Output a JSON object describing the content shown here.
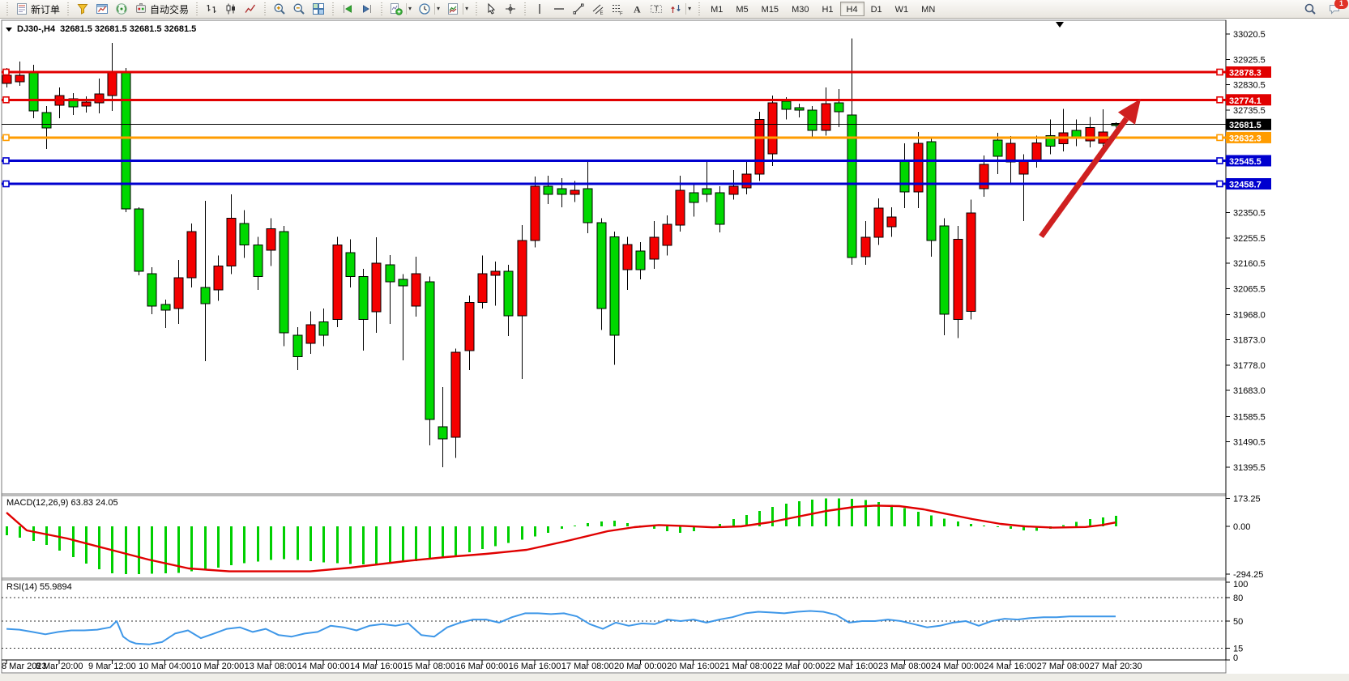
{
  "toolbar": {
    "new_order_label": "新订单",
    "auto_trading_label": "自动交易",
    "icon_groups": [
      [
        "new-order"
      ],
      [
        "funnel",
        "chart-window",
        "signal",
        "auto-trading"
      ],
      [
        "bars-chart",
        "candles-chart",
        "line-chart"
      ],
      [
        "zoom-in",
        "zoom-out",
        "tile-windows"
      ],
      [
        "auto-scroll",
        "chart-shift"
      ],
      [
        "indicators-add",
        "periods",
        "templates"
      ],
      [
        "cursor",
        "crosshair"
      ],
      [
        "vertical-line",
        "horizontal-line",
        "trend-line",
        "equidistant-channel",
        "fibonacci",
        "text",
        "text-label",
        "arr-tools"
      ]
    ],
    "dropdown_icons": [
      "indicators-add",
      "periods",
      "templates",
      "arr-tools"
    ],
    "timeframes": [
      "M1",
      "M5",
      "M15",
      "M30",
      "H1",
      "H4",
      "D1",
      "W1",
      "MN"
    ],
    "active_timeframe": "H4",
    "chat_badge_count": "1"
  },
  "chart": {
    "title": {
      "symbol_period": "DJ30-,H4",
      "ohlc": "32681.5 32681.5 32681.5 32681.5"
    },
    "current_price": "32681.5",
    "price_axis_ticks": [
      {
        "label": "33020.5",
        "price": 33020.5
      },
      {
        "label": "32925.5",
        "price": 32925.5
      },
      {
        "label": "32830.5",
        "price": 32830.5
      },
      {
        "label": "32735.5",
        "price": 32735.5
      },
      {
        "label": "32350.5",
        "price": 32350.5
      },
      {
        "label": "32255.5",
        "price": 32255.5
      },
      {
        "label": "32160.5",
        "price": 32160.5
      },
      {
        "label": "32065.5",
        "price": 32065.5
      },
      {
        "label": "31968.0",
        "price": 31968.0
      },
      {
        "label": "31873.0",
        "price": 31873.0
      },
      {
        "label": "31778.0",
        "price": 31778.0
      },
      {
        "label": "31683.0",
        "price": 31683.0
      },
      {
        "label": "31585.5",
        "price": 31585.5
      },
      {
        "label": "31490.5",
        "price": 31490.5
      },
      {
        "label": "31395.5",
        "price": 31395.5
      }
    ],
    "hlines": [
      {
        "label": "32878.3",
        "price": 32878.3,
        "color": "#e10000",
        "width": 3,
        "markers": true
      },
      {
        "label": "32774.1",
        "price": 32774.1,
        "color": "#e10000",
        "width": 3,
        "markers": true
      },
      {
        "label": "32681.5",
        "price": 32681.5,
        "color": "#000000",
        "width": 1,
        "markers": false
      },
      {
        "label": "32632.3",
        "price": 32632.3,
        "color": "#ff9c00",
        "width": 3,
        "markers": true
      },
      {
        "label": "32545.5",
        "price": 32545.5,
        "color": "#0000cf",
        "width": 3,
        "markers": true
      },
      {
        "label": "32458.7",
        "price": 32458.7,
        "color": "#0000cf",
        "width": 3,
        "markers": true
      }
    ],
    "time_axis_labels": [
      "8 Mar 2023",
      "8 Mar 20:00",
      "9 Mar 12:00",
      "10 Mar 04:00",
      "10 Mar 20:00",
      "13 Mar 08:00",
      "14 Mar 00:00",
      "14 Mar 16:00",
      "15 Mar 08:00",
      "16 Mar 00:00",
      "16 Mar 16:00",
      "17 Mar 08:00",
      "20 Mar 00:00",
      "20 Mar 16:00",
      "21 Mar 08:00",
      "22 Mar 00:00",
      "22 Mar 16:00",
      "23 Mar 08:00",
      "24 Mar 00:00",
      "24 Mar 16:00",
      "27 Mar 08:00",
      "27 Mar 20:30"
    ],
    "up_color": "#f40000",
    "down_color": "#00d800",
    "annotation_arrow": {
      "tail": [
        1285,
        292
      ],
      "tip": [
        1408,
        122
      ],
      "color": "#cf2020"
    }
  },
  "chart_data": {
    "type": "candlestick",
    "note": "values are [bodyTop, bodyBottom, high, low, color] in price units; bars spaced 16.3px from x=8",
    "candles": [
      [
        32866,
        32836,
        32893,
        32820,
        "r"
      ],
      [
        32866,
        32842,
        32918,
        32827,
        "r"
      ],
      [
        32875,
        32732,
        32906,
        32705,
        "g"
      ],
      [
        32726,
        32668,
        32750,
        32589,
        "g"
      ],
      [
        32790,
        32754,
        32820,
        32705,
        "r"
      ],
      [
        32778,
        32747,
        32799,
        32717,
        "g"
      ],
      [
        32766,
        32751,
        32787,
        32726,
        "r"
      ],
      [
        32796,
        32763,
        32854,
        32723,
        "r"
      ],
      [
        32881,
        32790,
        32988,
        32732,
        "r"
      ],
      [
        32875,
        32364,
        32893,
        32352,
        "g"
      ],
      [
        32364,
        32130,
        32370,
        32115,
        "g"
      ],
      [
        32121,
        32000,
        32146,
        31969,
        "g"
      ],
      [
        32006,
        31985,
        32024,
        31918,
        "g"
      ],
      [
        32106,
        31991,
        32173,
        31933,
        "r"
      ],
      [
        32279,
        32106,
        32310,
        32069,
        "r"
      ],
      [
        32069,
        32009,
        32395,
        31793,
        "g"
      ],
      [
        32150,
        32060,
        32190,
        32020,
        "r"
      ],
      [
        32330,
        32150,
        32420,
        32120,
        "r"
      ],
      [
        32310,
        32230,
        32360,
        32180,
        "g"
      ],
      [
        32230,
        32110,
        32260,
        32060,
        "g"
      ],
      [
        32290,
        32210,
        32330,
        32150,
        "r"
      ],
      [
        32280,
        31900,
        32300,
        31850,
        "g"
      ],
      [
        31890,
        31810,
        31920,
        31760,
        "g"
      ],
      [
        31930,
        31860,
        31980,
        31820,
        "r"
      ],
      [
        31940,
        31890,
        31990,
        31850,
        "g"
      ],
      [
        32230,
        31950,
        32260,
        31920,
        "r"
      ],
      [
        32200,
        32110,
        32250,
        32070,
        "g"
      ],
      [
        32110,
        31950,
        32140,
        31832,
        "g"
      ],
      [
        32161,
        31978,
        32258,
        31900,
        "r"
      ],
      [
        32155,
        32091,
        32191,
        31933,
        "g"
      ],
      [
        32100,
        32076,
        32120,
        31796,
        "g"
      ],
      [
        32121,
        32000,
        32185,
        31960,
        "r"
      ],
      [
        32091,
        31574,
        32110,
        31477,
        "g"
      ],
      [
        31547,
        31501,
        31695,
        31395,
        "g"
      ],
      [
        31826,
        31507,
        31840,
        31430,
        "r"
      ],
      [
        32014,
        31832,
        32040,
        31759,
        "r"
      ],
      [
        32121,
        32014,
        32190,
        31990,
        "r"
      ],
      [
        32130,
        32115,
        32167,
        32002,
        "r"
      ],
      [
        32130,
        31963,
        32155,
        31887,
        "g"
      ],
      [
        32246,
        31963,
        32304,
        31726,
        "r"
      ],
      [
        32450,
        32246,
        32486,
        32220,
        "r"
      ],
      [
        32450,
        32420,
        32489,
        32383,
        "g"
      ],
      [
        32440,
        32420,
        32480,
        32370,
        "g"
      ],
      [
        32435,
        32420,
        32470,
        32390,
        "r"
      ],
      [
        32440,
        32313,
        32547,
        32273,
        "g"
      ],
      [
        32313,
        31990,
        32330,
        31910,
        "g"
      ],
      [
        32260,
        31890,
        32280,
        31780,
        "g"
      ],
      [
        32231,
        32136,
        32260,
        32060,
        "r"
      ],
      [
        32206,
        32136,
        32240,
        32100,
        "g"
      ],
      [
        32258,
        32176,
        32319,
        32140,
        "r"
      ],
      [
        32307,
        32228,
        32340,
        32190,
        "r"
      ],
      [
        32435,
        32304,
        32489,
        32280,
        "r"
      ],
      [
        32426,
        32389,
        32460,
        32335,
        "g"
      ],
      [
        32440,
        32420,
        32550,
        32390,
        "g"
      ],
      [
        32426,
        32307,
        32450,
        32277,
        "g"
      ],
      [
        32450,
        32420,
        32511,
        32400,
        "r"
      ],
      [
        32496,
        32444,
        32541,
        32420,
        "r"
      ],
      [
        32700,
        32496,
        32730,
        32470,
        "r"
      ],
      [
        32763,
        32571,
        32790,
        32526,
        "r"
      ],
      [
        32769,
        32738,
        32784,
        32700,
        "g"
      ],
      [
        32744,
        32735,
        32760,
        32708,
        "g"
      ],
      [
        32735,
        32659,
        32750,
        32629,
        "g"
      ],
      [
        32760,
        32659,
        32820,
        32640,
        "r"
      ],
      [
        32763,
        32729,
        32814,
        32671,
        "g"
      ],
      [
        32717,
        32182,
        33005,
        32155,
        "g"
      ],
      [
        32258,
        32185,
        32319,
        32155,
        "r"
      ],
      [
        32368,
        32258,
        32404,
        32230,
        "r"
      ],
      [
        32334,
        32298,
        32370,
        32260,
        "r"
      ],
      [
        32547,
        32428,
        32611,
        32368,
        "g"
      ],
      [
        32611,
        32428,
        32653,
        32368,
        "r"
      ],
      [
        32617,
        32246,
        32630,
        32185,
        "g"
      ],
      [
        32300,
        31970,
        32330,
        31890,
        "g"
      ],
      [
        32250,
        31950,
        32300,
        31880,
        "r"
      ],
      [
        32350,
        31980,
        32400,
        31950,
        "r"
      ],
      [
        32531,
        32440,
        32565,
        32410,
        "r"
      ],
      [
        32623,
        32562,
        32650,
        32495,
        "g"
      ],
      [
        32611,
        32541,
        32638,
        32460,
        "r"
      ],
      [
        32547,
        32495,
        32570,
        32319,
        "r"
      ],
      [
        32612,
        32547,
        32640,
        32520,
        "r"
      ],
      [
        32640,
        32600,
        32700,
        32570,
        "g"
      ],
      [
        32650,
        32610,
        32740,
        32580,
        "r"
      ],
      [
        32660,
        32630,
        32700,
        32600,
        "g"
      ],
      [
        32670,
        32620,
        32710,
        32595,
        "r"
      ],
      [
        32653,
        32611,
        32738,
        32590,
        "r"
      ],
      [
        32685,
        32678,
        32690,
        32670,
        "g"
      ]
    ]
  },
  "macd": {
    "label": "MACD(12,26,9) 63.83 24.05",
    "levels": [
      {
        "label": "173.25",
        "value": 173.25
      },
      {
        "label": "0.00",
        "value": 0
      },
      {
        "label": "-294.25",
        "value": -294.25
      }
    ],
    "histogram": [
      -55,
      -70,
      -90,
      -115,
      -150,
      -190,
      -230,
      -265,
      -290,
      -295,
      -295,
      -293,
      -290,
      -287,
      -278,
      -268,
      -255,
      -240,
      -228,
      -217,
      -207,
      -203,
      -207,
      -215,
      -223,
      -228,
      -233,
      -235,
      -233,
      -228,
      -220,
      -215,
      -203,
      -193,
      -180,
      -160,
      -140,
      -123,
      -103,
      -83,
      -63,
      -40,
      -15,
      5,
      20,
      30,
      35,
      20,
      5,
      -15,
      -30,
      -40,
      -30,
      -10,
      15,
      45,
      70,
      95,
      120,
      140,
      155,
      165,
      172,
      173,
      170,
      162,
      150,
      133,
      112,
      90,
      68,
      48,
      30,
      15,
      5,
      -5,
      -15,
      -25,
      -28,
      -15,
      8,
      28,
      45,
      56,
      64
    ],
    "signal_line": [
      [
        8,
        85
      ],
      [
        33,
        -25
      ],
      [
        83,
        -75
      ],
      [
        133,
        -140
      ],
      [
        183,
        -205
      ],
      [
        233,
        -260
      ],
      [
        283,
        -278
      ],
      [
        383,
        -278
      ],
      [
        433,
        -255
      ],
      [
        500,
        -215
      ],
      [
        550,
        -190
      ],
      [
        600,
        -170
      ],
      [
        650,
        -145
      ],
      [
        700,
        -90
      ],
      [
        750,
        -30
      ],
      [
        783,
        -5
      ],
      [
        813,
        8
      ],
      [
        845,
        2
      ],
      [
        880,
        -6
      ],
      [
        915,
        0
      ],
      [
        950,
        25
      ],
      [
        985,
        60
      ],
      [
        1020,
        95
      ],
      [
        1055,
        120
      ],
      [
        1080,
        128
      ],
      [
        1110,
        125
      ],
      [
        1140,
        105
      ],
      [
        1170,
        75
      ],
      [
        1200,
        45
      ],
      [
        1235,
        15
      ],
      [
        1265,
        0
      ],
      [
        1300,
        -8
      ],
      [
        1340,
        -4
      ],
      [
        1360,
        8
      ],
      [
        1377,
        24
      ]
    ],
    "histogram_color": "#00cf00",
    "signal_color": "#e00000"
  },
  "rsi": {
    "label": "RSI(14) 55.9894",
    "levels": [
      {
        "label": "100",
        "value": 100,
        "dashed": false
      },
      {
        "label": "80",
        "value": 80,
        "dashed": true
      },
      {
        "label": "50",
        "value": 50,
        "dashed": true
      },
      {
        "label": "15",
        "value": 15,
        "dashed": true
      },
      {
        "label": "0",
        "value": 0,
        "dashed": false
      }
    ],
    "line": [
      [
        8,
        40
      ],
      [
        24,
        39
      ],
      [
        40,
        36
      ],
      [
        56,
        33
      ],
      [
        72,
        36
      ],
      [
        88,
        38
      ],
      [
        104,
        38
      ],
      [
        120,
        39
      ],
      [
        136,
        42
      ],
      [
        144,
        50
      ],
      [
        152,
        30
      ],
      [
        160,
        24
      ],
      [
        168,
        21
      ],
      [
        184,
        20
      ],
      [
        200,
        23
      ],
      [
        216,
        34
      ],
      [
        232,
        38
      ],
      [
        248,
        28
      ],
      [
        264,
        34
      ],
      [
        280,
        40
      ],
      [
        296,
        42
      ],
      [
        312,
        36
      ],
      [
        328,
        40
      ],
      [
        344,
        32
      ],
      [
        360,
        30
      ],
      [
        376,
        34
      ],
      [
        392,
        36
      ],
      [
        408,
        44
      ],
      [
        424,
        42
      ],
      [
        440,
        38
      ],
      [
        456,
        44
      ],
      [
        472,
        46
      ],
      [
        488,
        44
      ],
      [
        504,
        47
      ],
      [
        520,
        32
      ],
      [
        536,
        30
      ],
      [
        552,
        42
      ],
      [
        568,
        48
      ],
      [
        584,
        52
      ],
      [
        600,
        52
      ],
      [
        616,
        48
      ],
      [
        632,
        55
      ],
      [
        648,
        60
      ],
      [
        664,
        60
      ],
      [
        680,
        59
      ],
      [
        696,
        60
      ],
      [
        712,
        56
      ],
      [
        728,
        46
      ],
      [
        744,
        40
      ],
      [
        760,
        48
      ],
      [
        776,
        44
      ],
      [
        792,
        47
      ],
      [
        808,
        46
      ],
      [
        824,
        52
      ],
      [
        840,
        50
      ],
      [
        856,
        52
      ],
      [
        872,
        48
      ],
      [
        888,
        52
      ],
      [
        904,
        55
      ],
      [
        920,
        60
      ],
      [
        936,
        62
      ],
      [
        952,
        61
      ],
      [
        968,
        60
      ],
      [
        984,
        62
      ],
      [
        1000,
        63
      ],
      [
        1016,
        62
      ],
      [
        1032,
        58
      ],
      [
        1048,
        48
      ],
      [
        1064,
        50
      ],
      [
        1080,
        50
      ],
      [
        1096,
        52
      ],
      [
        1112,
        50
      ],
      [
        1128,
        46
      ],
      [
        1144,
        42
      ],
      [
        1160,
        44
      ],
      [
        1176,
        48
      ],
      [
        1192,
        50
      ],
      [
        1208,
        44
      ],
      [
        1224,
        50
      ],
      [
        1240,
        53
      ],
      [
        1256,
        52
      ],
      [
        1272,
        54
      ],
      [
        1288,
        55
      ],
      [
        1304,
        55
      ],
      [
        1320,
        56
      ],
      [
        1336,
        56
      ],
      [
        1352,
        56
      ],
      [
        1377,
        56
      ]
    ],
    "line_color": "#3e97e8"
  }
}
